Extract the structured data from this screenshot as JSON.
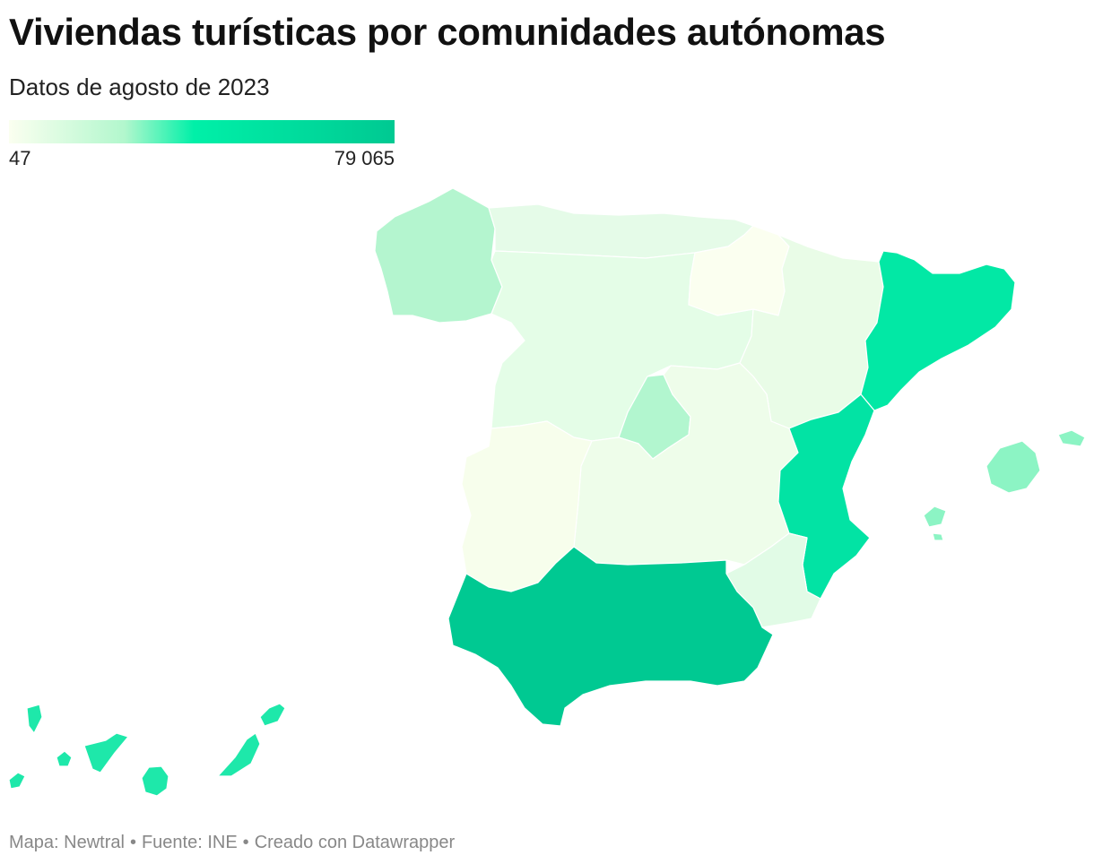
{
  "header": {
    "title": "Viviendas turísticas por comunidades autónomas",
    "subtitle": "Datos de agosto de 2023"
  },
  "legend": {
    "min_label": "47",
    "max_label": "79 065",
    "colors": [
      "#fbfff0",
      "#b2f7cd",
      "#00f0a8",
      "#00c992"
    ]
  },
  "map": {
    "regions": [
      {
        "name": "Galicia",
        "color": "#b4f5cf"
      },
      {
        "name": "Cornisa cantábrica",
        "color": "#e5fbe8"
      },
      {
        "name": "Castilla y León",
        "color": "#e4fde7"
      },
      {
        "name": "La Rioja / Navarra",
        "color": "#fbfff0"
      },
      {
        "name": "Aragón",
        "color": "#e9fce7"
      },
      {
        "name": "Cataluña",
        "color": "#02e8a5"
      },
      {
        "name": "Comunidad de Madrid",
        "color": "#b2f6cf"
      },
      {
        "name": "Castilla-La Mancha",
        "color": "#eefdea"
      },
      {
        "name": "Extremadura",
        "color": "#f7feec"
      },
      {
        "name": "Comunitat Valenciana",
        "color": "#02e3a4"
      },
      {
        "name": "Región de Murcia",
        "color": "#e1fbe6"
      },
      {
        "name": "Andalucía",
        "color": "#00c992"
      },
      {
        "name": "Illes Balears",
        "color": "#8cf4c4"
      },
      {
        "name": "Canarias",
        "color": "#1ee8aa"
      }
    ]
  },
  "footer": {
    "map_credit": "Mapa: Newtral",
    "source": "Fuente: INE",
    "tool": "Creado con Datawrapper",
    "separator": "•"
  }
}
